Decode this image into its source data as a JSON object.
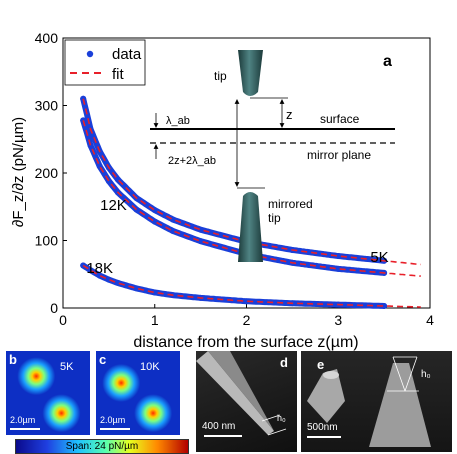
{
  "colors": {
    "data": "#1a3fd9",
    "fit": "#e8202a",
    "axis": "#000000",
    "map_background": "#0d2fc4",
    "sem_background": "#1a1a1a"
  },
  "chart_data": {
    "type": "line",
    "panel_label": "a",
    "xlabel": "distance from the surface z(µm)",
    "ylabel": "∂F_z/∂z (pN/µm)",
    "xlim": [
      0,
      4
    ],
    "ylim": [
      0,
      400
    ],
    "xticks": [
      "0",
      "1",
      "2",
      "3",
      "4"
    ],
    "yticks": [
      "0",
      "100",
      "200",
      "300",
      "400"
    ],
    "legend": {
      "position": "top-left",
      "entries": [
        "data",
        "fit"
      ]
    },
    "series": [
      {
        "name": "12K",
        "x": [
          0.22,
          0.3,
          0.4,
          0.5,
          0.6,
          0.8,
          1.0,
          1.2,
          1.5,
          2.0,
          2.5,
          3.0,
          3.5
        ],
        "y": [
          310,
          265,
          232,
          208,
          190,
          163,
          145,
          131,
          116,
          98,
          86,
          77,
          70
        ]
      },
      {
        "name": "5K",
        "x": [
          0.22,
          0.3,
          0.4,
          0.5,
          0.6,
          0.8,
          1.0,
          1.2,
          1.5,
          2.0,
          2.5,
          3.0,
          3.5
        ],
        "y": [
          278,
          241,
          210,
          188,
          171,
          146,
          128,
          114,
          99,
          80,
          67,
          58,
          52
        ]
      },
      {
        "name": "18K",
        "x": [
          0.22,
          0.3,
          0.4,
          0.5,
          0.6,
          0.8,
          1.0,
          1.2,
          1.5,
          2.0,
          2.5,
          3.0,
          3.5
        ],
        "y": [
          63,
          56,
          48,
          42,
          37,
          29,
          23,
          19,
          15,
          10,
          7,
          5,
          3
        ]
      }
    ],
    "fit_extension": {
      "x_end": 3.9
    },
    "curve_labels": [
      {
        "text": "12K",
        "x": 0.55,
        "y": 145
      },
      {
        "text": "18K",
        "x": 0.4,
        "y": 52
      },
      {
        "text": "5K",
        "x": 3.45,
        "y": 68
      }
    ],
    "schematic": {
      "tip_label": "tip",
      "surface_label": "surface",
      "mirror_label": "mirror plane",
      "mirrored_tip_label": "mirrored\ntip",
      "z_label": "z",
      "lambda_label": "λ_ab",
      "gap_label": "2z+2λ_ab"
    }
  },
  "panels": {
    "b": {
      "label": "b",
      "text": "5K",
      "scale": "2.0µm"
    },
    "c": {
      "label": "c",
      "text": "10K",
      "scale": "2.0µm"
    },
    "d": {
      "label": "d",
      "scale": "400 nm",
      "marker": "h₀"
    },
    "e": {
      "label": "e",
      "scale": "500nm",
      "marker": "h₀"
    }
  },
  "colorbar": {
    "label": "Span: 24 pN/µm"
  }
}
